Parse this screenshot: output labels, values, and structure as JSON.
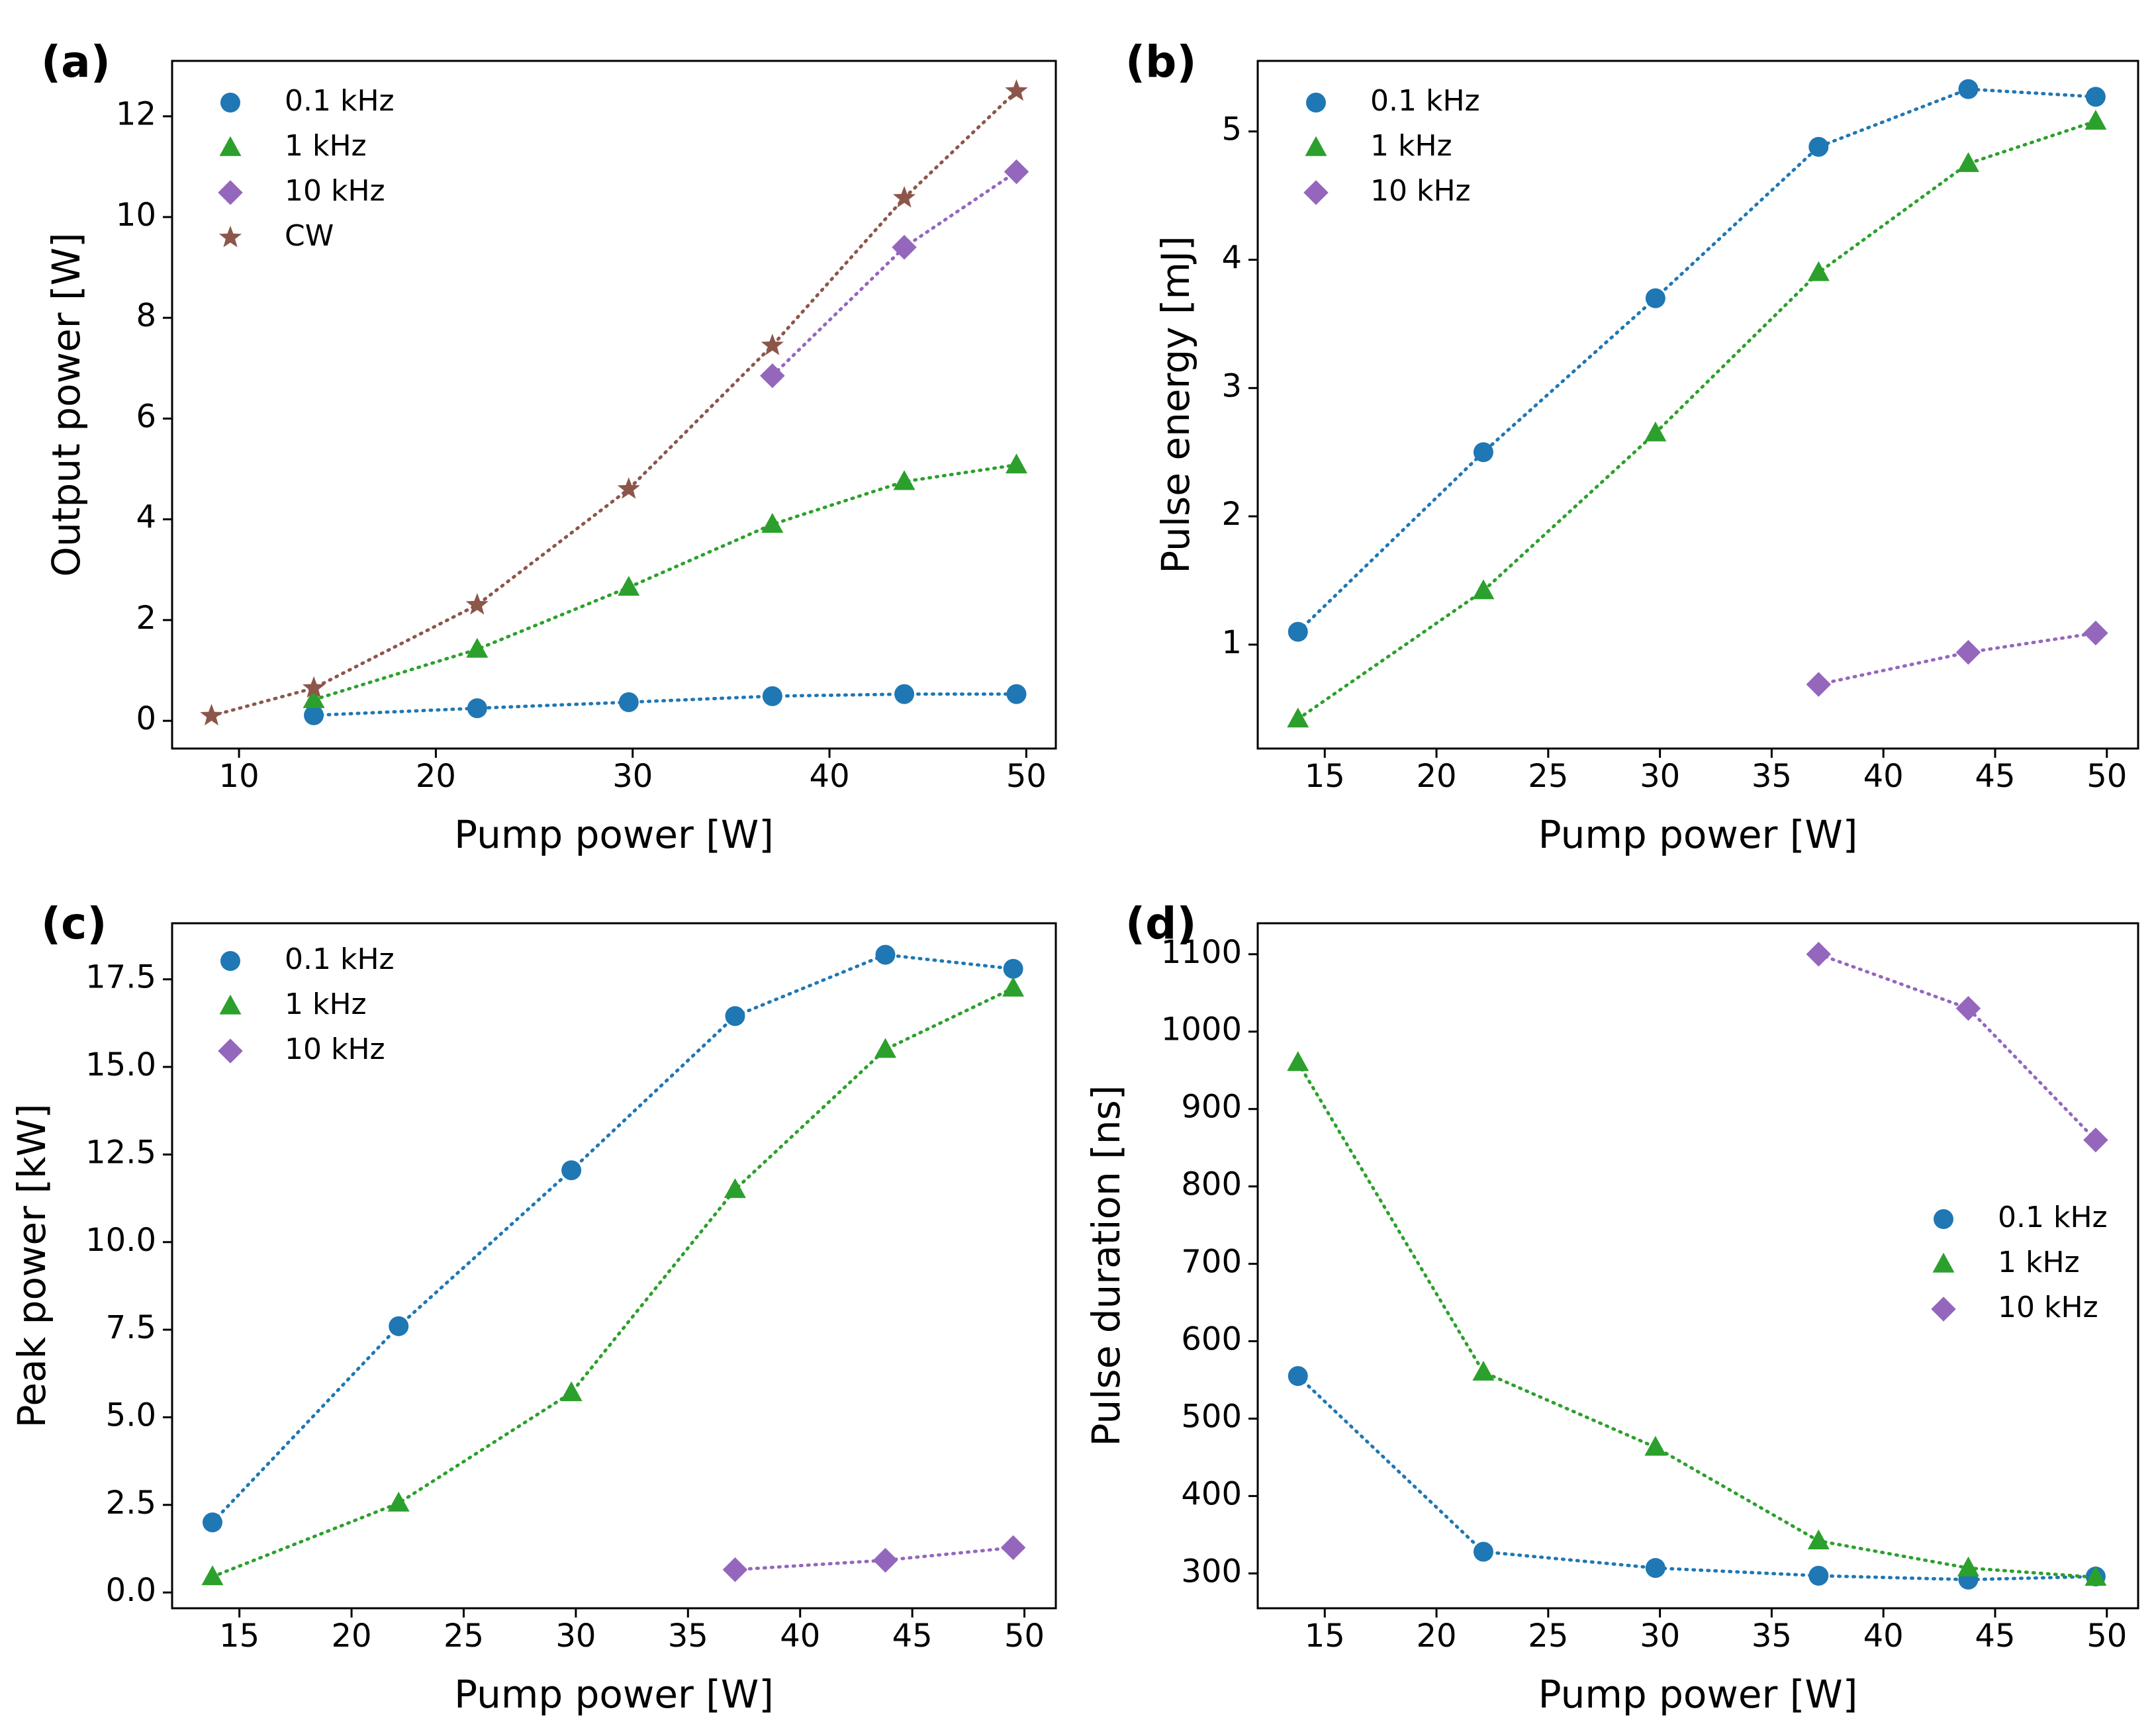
{
  "colors": {
    "series_0_1kHz": "#1f77b4",
    "series_1kHz": "#2ca02c",
    "series_10kHz": "#9467bd",
    "series_cw": "#8c564b"
  },
  "chart_data": [
    {
      "panel": "(a)",
      "type": "line",
      "xlabel": "Pump power [W]",
      "ylabel": "Output power [W]",
      "xlim": [
        6.6,
        51.5
      ],
      "ylim": [
        -0.55,
        13.1
      ],
      "xticks": [
        10,
        20,
        30,
        40,
        50
      ],
      "yticks": [
        0,
        2,
        4,
        6,
        8,
        10,
        12
      ],
      "ytick_labels": [
        "0",
        "2",
        "4",
        "6",
        "8",
        "10",
        "12"
      ],
      "legend": "upper-left",
      "series": [
        {
          "name": "0.1 kHz",
          "marker": "circle",
          "color": "#1f77b4",
          "x": [
            13.8,
            22.1,
            29.8,
            37.1,
            43.8,
            49.5
          ],
          "y": [
            0.11,
            0.25,
            0.37,
            0.49,
            0.53,
            0.53
          ]
        },
        {
          "name": "1 kHz",
          "marker": "triangle",
          "color": "#2ca02c",
          "x": [
            13.8,
            22.1,
            29.8,
            37.1,
            43.8,
            49.5
          ],
          "y": [
            0.42,
            1.42,
            2.65,
            3.9,
            4.75,
            5.08
          ]
        },
        {
          "name": "10 kHz",
          "marker": "diamond",
          "color": "#9467bd",
          "x": [
            37.1,
            43.8,
            49.5
          ],
          "y": [
            6.85,
            9.4,
            10.9
          ]
        },
        {
          "name": "CW",
          "marker": "star",
          "color": "#8c564b",
          "x": [
            8.6,
            13.8,
            22.1,
            29.8,
            37.1,
            43.8,
            49.5
          ],
          "y": [
            0.1,
            0.65,
            2.3,
            4.6,
            7.45,
            10.38,
            12.5
          ]
        }
      ]
    },
    {
      "panel": "(b)",
      "type": "line",
      "xlabel": "Pump power [W]",
      "ylabel": "Pulse energy [mJ]",
      "xlim": [
        12.0,
        51.4
      ],
      "ylim": [
        0.19,
        5.55
      ],
      "xticks": [
        15,
        20,
        25,
        30,
        35,
        40,
        45,
        50
      ],
      "yticks": [
        1,
        2,
        3,
        4,
        5
      ],
      "ytick_labels": [
        "1",
        "2",
        "3",
        "4",
        "5"
      ],
      "legend": "upper-left",
      "series": [
        {
          "name": "0.1 kHz",
          "marker": "circle",
          "color": "#1f77b4",
          "x": [
            13.8,
            22.1,
            29.8,
            37.1,
            43.8,
            49.5
          ],
          "y": [
            1.1,
            2.5,
            3.7,
            4.88,
            5.33,
            5.27
          ]
        },
        {
          "name": "1 kHz",
          "marker": "triangle",
          "color": "#2ca02c",
          "x": [
            13.8,
            22.1,
            29.8,
            37.1,
            43.8,
            49.5
          ],
          "y": [
            0.42,
            1.42,
            2.65,
            3.9,
            4.75,
            5.08
          ]
        },
        {
          "name": "10 kHz",
          "marker": "diamond",
          "color": "#9467bd",
          "x": [
            37.1,
            43.8,
            49.5
          ],
          "y": [
            0.69,
            0.94,
            1.09
          ]
        }
      ]
    },
    {
      "panel": "(c)",
      "type": "line",
      "xlabel": "Pump power [W]",
      "ylabel": "Peak power [kW]",
      "xlim": [
        12.0,
        51.4
      ],
      "ylim": [
        -0.45,
        19.1
      ],
      "xticks": [
        15,
        20,
        25,
        30,
        35,
        40,
        45,
        50
      ],
      "yticks": [
        0,
        2.5,
        5,
        7.5,
        10,
        12.5,
        15,
        17.5
      ],
      "ytick_labels": [
        "0.0",
        "2.5",
        "5.0",
        "7.5",
        "10.0",
        "12.5",
        "15.0",
        "17.5"
      ],
      "legend": "upper-left",
      "series": [
        {
          "name": "0.1 kHz",
          "marker": "circle",
          "color": "#1f77b4",
          "x": [
            13.8,
            22.1,
            29.8,
            37.1,
            43.8,
            49.5
          ],
          "y": [
            2.0,
            7.6,
            12.05,
            16.45,
            18.2,
            17.8
          ]
        },
        {
          "name": "1 kHz",
          "marker": "triangle",
          "color": "#2ca02c",
          "x": [
            13.8,
            22.1,
            29.8,
            37.1,
            43.8,
            49.5
          ],
          "y": [
            0.45,
            2.55,
            5.7,
            11.5,
            15.5,
            17.25
          ]
        },
        {
          "name": "10 kHz",
          "marker": "diamond",
          "color": "#9467bd",
          "x": [
            37.1,
            43.8,
            49.5
          ],
          "y": [
            0.65,
            0.92,
            1.28
          ]
        }
      ]
    },
    {
      "panel": "(d)",
      "type": "line",
      "xlabel": "Pump power [W]",
      "ylabel": "Pulse duration [ns]",
      "xlim": [
        12.0,
        51.4
      ],
      "ylim": [
        255,
        1140
      ],
      "xticks": [
        15,
        20,
        25,
        30,
        35,
        40,
        45,
        50
      ],
      "yticks": [
        300,
        400,
        500,
        600,
        700,
        800,
        900,
        1000,
        1100
      ],
      "ytick_labels": [
        "300",
        "400",
        "500",
        "600",
        "700",
        "800",
        "900",
        "1000",
        "1100"
      ],
      "legend": "center-right",
      "series": [
        {
          "name": "0.1 kHz",
          "marker": "circle",
          "color": "#1f77b4",
          "x": [
            13.8,
            22.1,
            29.8,
            37.1,
            43.8,
            49.5
          ],
          "y": [
            555,
            328,
            307,
            297,
            292,
            296
          ]
        },
        {
          "name": "1 kHz",
          "marker": "triangle",
          "color": "#2ca02c",
          "x": [
            13.8,
            22.1,
            29.8,
            37.1,
            43.8,
            49.5
          ],
          "y": [
            960,
            560,
            463,
            342,
            307,
            295
          ]
        },
        {
          "name": "10 kHz",
          "marker": "diamond",
          "color": "#9467bd",
          "x": [
            37.1,
            43.8,
            49.5
          ],
          "y": [
            1100,
            1030,
            860
          ]
        }
      ]
    }
  ]
}
